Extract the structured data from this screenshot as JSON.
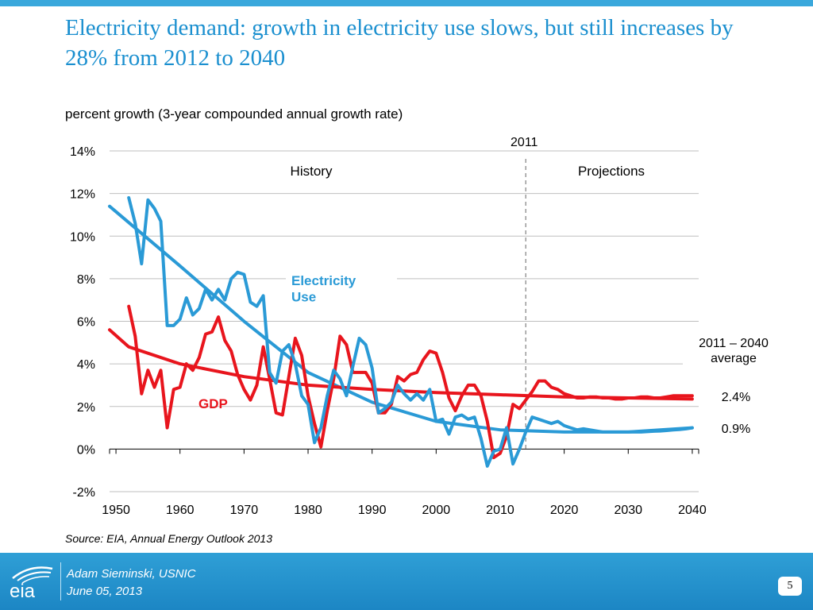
{
  "slide": {
    "title": "Electricity demand: growth in electricity use slows, but still increases by 28% from 2012 to 2040",
    "source": "Source:  EIA, Annual Energy Outlook 2013"
  },
  "footer": {
    "presenter": "Adam Sieminski, USNIC",
    "date": "June 05, 2013",
    "page_number": "5",
    "logo_text": "eia"
  },
  "colors": {
    "title": "#1a8fcf",
    "electricity": "#2a9ad6",
    "gdp": "#e8151d",
    "footer": "#2f9fd6",
    "grid": "#bfbfbf"
  },
  "chart_data": {
    "type": "line",
    "subtitle": "percent growth (3-year compounded annual growth rate)",
    "x_ticks": [
      1950,
      1960,
      1970,
      1980,
      1990,
      2000,
      2010,
      2020,
      2030,
      2040
    ],
    "y_ticks": [
      -2,
      0,
      2,
      4,
      6,
      8,
      10,
      12,
      14
    ],
    "y_tick_labels": [
      "-2%",
      "0%",
      "2%",
      "4%",
      "6%",
      "8%",
      "10%",
      "12%",
      "14%"
    ],
    "xlim": [
      1949,
      2041
    ],
    "ylim": [
      -2,
      14
    ],
    "grid": "horizontal",
    "divider": {
      "x": 2014,
      "label": "2011"
    },
    "region_labels": {
      "history": "History",
      "projections": "Projections"
    },
    "average_header": "2011 – 2040\naverage",
    "series": [
      {
        "name": "Electricity\nUse",
        "color": "#2a9ad6",
        "average_label": "0.9%",
        "x": [
          1952,
          1953,
          1954,
          1955,
          1956,
          1957,
          1958,
          1959,
          1960,
          1961,
          1962,
          1963,
          1964,
          1965,
          1966,
          1967,
          1968,
          1969,
          1970,
          1971,
          1972,
          1973,
          1974,
          1975,
          1976,
          1977,
          1978,
          1979,
          1980,
          1981,
          1982,
          1983,
          1984,
          1985,
          1986,
          1987,
          1988,
          1989,
          1990,
          1991,
          1992,
          1993,
          1994,
          1995,
          1996,
          1997,
          1998,
          1999,
          2000,
          2001,
          2002,
          2003,
          2004,
          2005,
          2006,
          2007,
          2008,
          2009,
          2010,
          2011,
          2012,
          2013,
          2014,
          2015,
          2016,
          2017,
          2018,
          2019,
          2020,
          2021,
          2022,
          2023,
          2024,
          2025,
          2026,
          2027,
          2028,
          2029,
          2030,
          2031,
          2032,
          2033,
          2034,
          2035,
          2036,
          2037,
          2038,
          2039,
          2040
        ],
        "values": [
          11.8,
          10.6,
          8.7,
          11.7,
          11.3,
          10.7,
          5.8,
          5.8,
          6.1,
          7.1,
          6.3,
          6.6,
          7.5,
          7.0,
          7.5,
          7.0,
          8.0,
          8.3,
          8.2,
          6.9,
          6.7,
          7.2,
          3.6,
          3.1,
          4.6,
          4.9,
          4.0,
          2.5,
          2.1,
          0.3,
          1.0,
          2.5,
          3.7,
          3.3,
          2.5,
          3.9,
          5.2,
          4.9,
          3.8,
          1.7,
          1.9,
          2.2,
          3.0,
          2.6,
          2.3,
          2.6,
          2.3,
          2.8,
          1.3,
          1.4,
          0.7,
          1.5,
          1.6,
          1.4,
          1.5,
          0.5,
          -0.8,
          -0.1,
          0.0,
          1.0,
          -0.7,
          0.0,
          0.8,
          1.5,
          1.4,
          1.3,
          1.2,
          1.3,
          1.1,
          1.0,
          0.9,
          0.95,
          0.9,
          0.85,
          0.8,
          0.8,
          0.8,
          0.8,
          0.8,
          0.8,
          0.8,
          0.82,
          0.84,
          0.85,
          0.87,
          0.9,
          0.92,
          0.95,
          1.0
        ]
      },
      {
        "name": "GDP",
        "color": "#e8151d",
        "average_label": "2.4%",
        "x": [
          1952,
          1953,
          1954,
          1955,
          1956,
          1957,
          1958,
          1959,
          1960,
          1961,
          1962,
          1963,
          1964,
          1965,
          1966,
          1967,
          1968,
          1969,
          1970,
          1971,
          1972,
          1973,
          1974,
          1975,
          1976,
          1977,
          1978,
          1979,
          1980,
          1981,
          1982,
          1983,
          1984,
          1985,
          1986,
          1987,
          1988,
          1989,
          1990,
          1991,
          1992,
          1993,
          1994,
          1995,
          1996,
          1997,
          1998,
          1999,
          2000,
          2001,
          2002,
          2003,
          2004,
          2005,
          2006,
          2007,
          2008,
          2009,
          2010,
          2011,
          2012,
          2013,
          2014,
          2015,
          2016,
          2017,
          2018,
          2019,
          2020,
          2021,
          2022,
          2023,
          2024,
          2025,
          2026,
          2027,
          2028,
          2029,
          2030,
          2031,
          2032,
          2033,
          2034,
          2035,
          2036,
          2037,
          2038,
          2039,
          2040
        ],
        "values": [
          6.7,
          5.3,
          2.6,
          3.7,
          2.9,
          3.7,
          1.0,
          2.8,
          2.9,
          4.0,
          3.7,
          4.3,
          5.4,
          5.5,
          6.2,
          5.1,
          4.6,
          3.5,
          2.8,
          2.3,
          3.0,
          4.8,
          3.3,
          1.7,
          1.6,
          3.4,
          5.2,
          4.4,
          2.5,
          1.2,
          0.1,
          1.8,
          3.3,
          5.3,
          4.9,
          3.6,
          3.6,
          3.6,
          3.1,
          1.7,
          1.7,
          2.1,
          3.4,
          3.2,
          3.5,
          3.6,
          4.2,
          4.6,
          4.5,
          3.6,
          2.4,
          1.8,
          2.5,
          3.0,
          3.0,
          2.5,
          1.3,
          -0.4,
          -0.2,
          0.6,
          2.1,
          1.9,
          2.3,
          2.7,
          3.2,
          3.2,
          2.9,
          2.8,
          2.6,
          2.5,
          2.4,
          2.4,
          2.45,
          2.45,
          2.4,
          2.4,
          2.35,
          2.35,
          2.4,
          2.4,
          2.45,
          2.45,
          2.4,
          2.4,
          2.45,
          2.5,
          2.5,
          2.5,
          2.5
        ]
      }
    ],
    "trendlines": [
      {
        "name": "electricity-trend",
        "color": "#2a9ad6",
        "x": [
          1949,
          1960,
          1970,
          1980,
          1990,
          2000,
          2010,
          2020,
          2030,
          2040
        ],
        "values": [
          11.4,
          8.6,
          6.0,
          3.6,
          2.2,
          1.3,
          0.9,
          0.8,
          0.8,
          1.0
        ]
      },
      {
        "name": "gdp-trend",
        "color": "#e8151d",
        "x": [
          1949,
          1952,
          1960,
          1970,
          1980,
          1990,
          2000,
          2010,
          2020,
          2030,
          2040
        ],
        "values": [
          5.6,
          4.8,
          4.0,
          3.4,
          3.0,
          2.8,
          2.65,
          2.55,
          2.45,
          2.4,
          2.35
        ]
      }
    ]
  }
}
